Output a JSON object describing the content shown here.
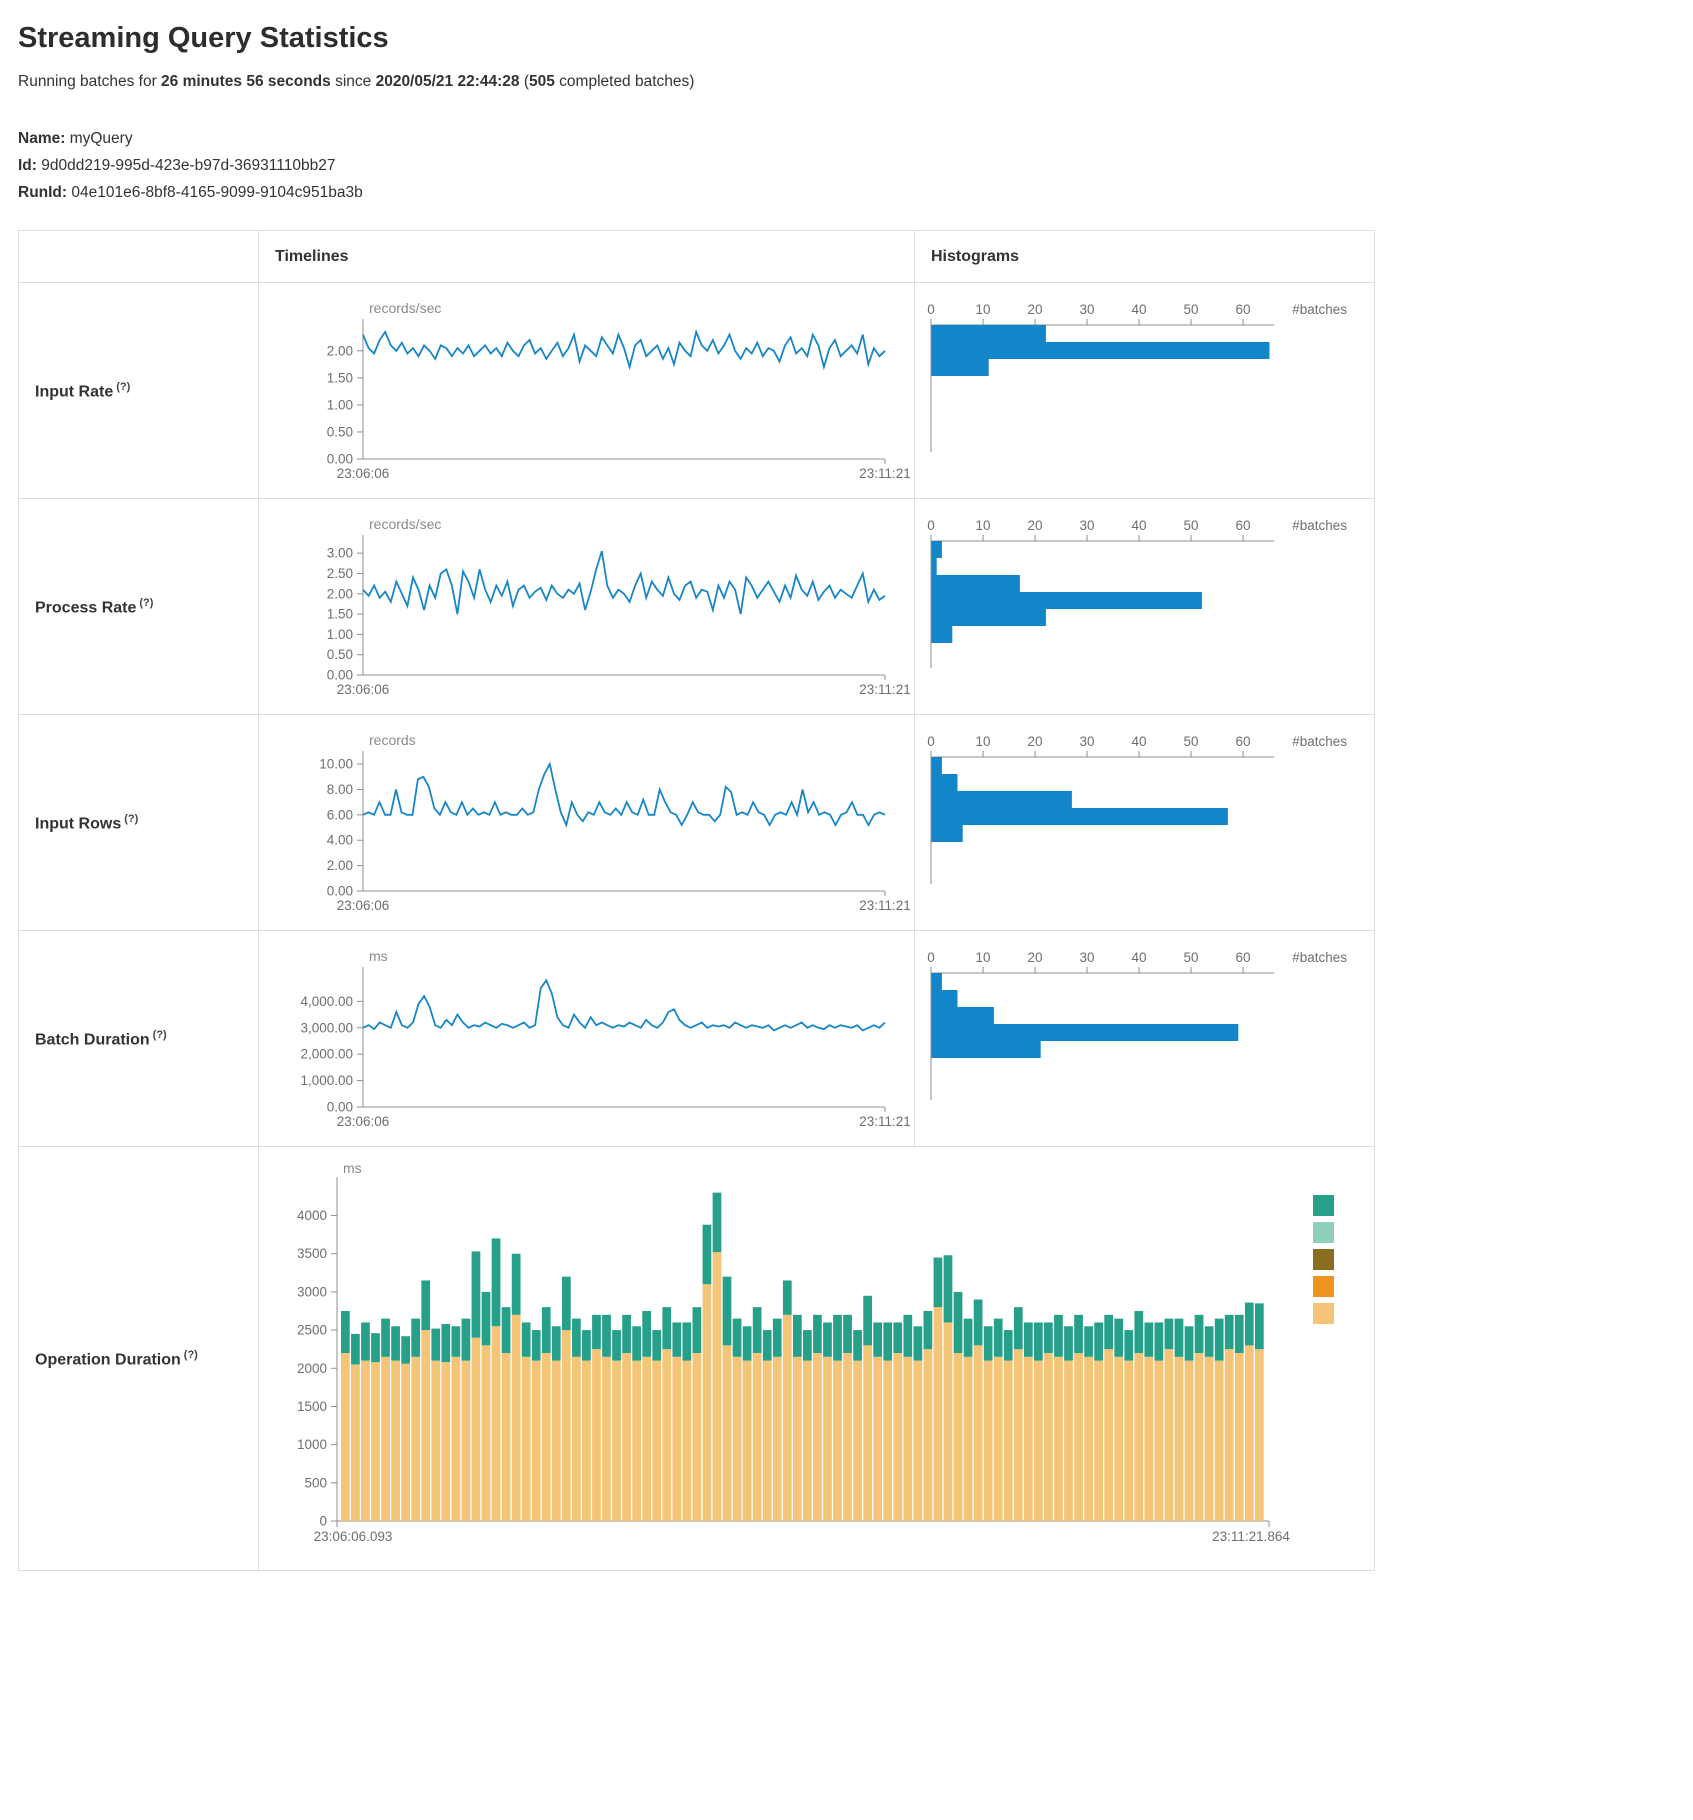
{
  "page": {
    "title": "Streaming Query Statistics",
    "subtitle": {
      "prefix": "Running batches for ",
      "duration": "26 minutes 56 seconds",
      "mid": " since ",
      "since": "2020/05/21 22:44:28",
      "paren_open": " (",
      "batches": "505",
      "paren_close": " completed batches)"
    },
    "meta": {
      "name_label": "Name:",
      "name": "myQuery",
      "id_label": "Id:",
      "id": "9d0dd219-995d-423e-b97d-36931110bb27",
      "runid_label": "RunId:",
      "runid": "04e101e6-8bf8-4165-9099-9104c951ba3b"
    }
  },
  "table": {
    "headers": {
      "timelines": "Timelines",
      "histograms": "Histograms"
    },
    "rows": [
      {
        "label": "Input Rate",
        "help": "(?)"
      },
      {
        "label": "Process Rate",
        "help": "(?)"
      },
      {
        "label": "Input Rows",
        "help": "(?)"
      },
      {
        "label": "Batch Duration",
        "help": "(?)"
      },
      {
        "label": "Operation Duration",
        "help": "(?)"
      }
    ]
  },
  "theme": {
    "line_blue": "#1786c8",
    "hist_blue": "#1386c9",
    "axis_gray": "#8f8f8f",
    "bar_tan": "#f4c577",
    "bar_green": "#27a08a",
    "legend": [
      "#27a08a",
      "#8fd0bc",
      "#8a6d1f",
      "#ef951f",
      "#f4c577"
    ]
  },
  "chart_data": [
    {
      "id": "input-rate-timeline",
      "type": "line",
      "unit": "records/sec",
      "x_start": "23:06:06",
      "x_end": "23:11:21",
      "ymax": 2.44,
      "yticks": [
        {
          "v": 2.0,
          "l": "2.00"
        },
        {
          "v": 1.5,
          "l": "1.50"
        },
        {
          "v": 1.0,
          "l": "1.00"
        },
        {
          "v": 0.5,
          "l": "0.50"
        },
        {
          "v": 0.0,
          "l": "0.00"
        }
      ],
      "values": [
        2.3,
        2.05,
        1.95,
        2.2,
        2.35,
        2.1,
        2.0,
        2.15,
        1.95,
        2.05,
        1.9,
        2.1,
        2.0,
        1.85,
        2.1,
        2.05,
        1.9,
        2.05,
        1.95,
        2.1,
        1.9,
        2.0,
        2.1,
        1.95,
        2.05,
        1.9,
        2.15,
        2.0,
        1.9,
        2.1,
        2.2,
        1.95,
        2.05,
        1.85,
        2.0,
        2.15,
        1.9,
        2.05,
        2.3,
        1.8,
        2.1,
        2.0,
        1.9,
        2.25,
        2.1,
        1.95,
        2.3,
        2.05,
        1.7,
        2.1,
        2.2,
        1.9,
        2.0,
        2.1,
        1.85,
        2.05,
        1.75,
        2.15,
        2.0,
        1.9,
        2.35,
        2.1,
        2.0,
        2.2,
        1.95,
        2.1,
        2.3,
        2.0,
        1.85,
        2.05,
        1.95,
        2.15,
        1.9,
        2.05,
        2.0,
        1.8,
        2.1,
        2.25,
        1.95,
        2.05,
        1.9,
        2.3,
        2.1,
        1.7,
        2.05,
        2.2,
        1.9,
        2.0,
        2.1,
        1.95,
        2.3,
        1.75,
        2.05,
        1.9,
        2.0
      ]
    },
    {
      "id": "input-rate-histogram",
      "type": "hbar",
      "right_label": "#batches",
      "xticks": [
        0,
        10,
        20,
        30,
        40,
        50,
        60
      ],
      "xmax": 66,
      "values": [
        22,
        65,
        11
      ]
    },
    {
      "id": "process-rate-timeline",
      "type": "line",
      "unit": "records/sec",
      "x_start": "23:06:06",
      "x_end": "23:11:21",
      "ymax": 3.25,
      "yticks": [
        {
          "v": 3.0,
          "l": "3.00"
        },
        {
          "v": 2.5,
          "l": "2.50"
        },
        {
          "v": 2.0,
          "l": "2.00"
        },
        {
          "v": 1.5,
          "l": "1.50"
        },
        {
          "v": 1.0,
          "l": "1.00"
        },
        {
          "v": 0.5,
          "l": "0.50"
        },
        {
          "v": 0.0,
          "l": "0.00"
        }
      ],
      "values": [
        2.1,
        1.95,
        2.2,
        1.9,
        2.05,
        1.8,
        2.3,
        2.0,
        1.7,
        2.4,
        2.1,
        1.6,
        2.2,
        1.9,
        2.5,
        2.6,
        2.2,
        1.5,
        2.55,
        2.3,
        1.9,
        2.6,
        2.1,
        1.8,
        2.2,
        1.95,
        2.3,
        1.7,
        2.1,
        2.2,
        1.9,
        2.05,
        2.15,
        1.85,
        2.2,
        2.0,
        1.9,
        2.1,
        2.0,
        2.25,
        1.6,
        2.05,
        2.6,
        3.05,
        2.2,
        1.9,
        2.1,
        2.0,
        1.8,
        2.2,
        2.5,
        1.9,
        2.3,
        2.1,
        1.95,
        2.4,
        2.0,
        1.85,
        2.2,
        2.3,
        1.9,
        2.1,
        2.05,
        1.6,
        2.2,
        1.9,
        2.3,
        2.1,
        1.5,
        2.4,
        2.2,
        1.9,
        2.1,
        2.3,
        2.05,
        1.8,
        2.2,
        1.9,
        2.45,
        2.1,
        1.95,
        2.3,
        1.85,
        2.05,
        2.2,
        1.9,
        2.1,
        2.0,
        1.9,
        2.2,
        2.5,
        1.8,
        2.1,
        1.85,
        1.95
      ]
    },
    {
      "id": "process-rate-histogram",
      "type": "hbar",
      "right_label": "#batches",
      "xticks": [
        0,
        10,
        20,
        30,
        40,
        50,
        60
      ],
      "xmax": 66,
      "values": [
        2,
        1,
        17,
        52,
        22,
        4
      ]
    },
    {
      "id": "input-rows-timeline",
      "type": "line",
      "unit": "records",
      "x_start": "23:06:06",
      "x_end": "23:11:21",
      "ymax": 10.4,
      "yticks": [
        {
          "v": 10,
          "l": "10.00"
        },
        {
          "v": 8,
          "l": "8.00"
        },
        {
          "v": 6,
          "l": "6.00"
        },
        {
          "v": 4,
          "l": "4.00"
        },
        {
          "v": 2,
          "l": "2.00"
        },
        {
          "v": 0,
          "l": "0.00"
        }
      ],
      "values": [
        6,
        6.2,
        6,
        7,
        6,
        6,
        8,
        6.2,
        6,
        6,
        8.8,
        9,
        8.2,
        6.5,
        6,
        7,
        6.2,
        6,
        7,
        6,
        6.5,
        6,
        6.2,
        6,
        7,
        6,
        6.2,
        6,
        6,
        6.5,
        6,
        6.2,
        8,
        9.2,
        10,
        8,
        6.2,
        5.2,
        7,
        6,
        5.5,
        6.2,
        6,
        7,
        6.2,
        6,
        6.5,
        6,
        7,
        6.2,
        6,
        7.2,
        6,
        6,
        8,
        7,
        6.2,
        6,
        5.2,
        6,
        7,
        6.2,
        6,
        6,
        5.5,
        6,
        8.2,
        7.8,
        6,
        6.2,
        6,
        7,
        6.2,
        6,
        5.2,
        6,
        6.2,
        6,
        7,
        6,
        8,
        6.2,
        7,
        6,
        6.2,
        6,
        5.2,
        6,
        6.2,
        7,
        6,
        6,
        5.2,
        6,
        6.2,
        6
      ]
    },
    {
      "id": "input-rows-histogram",
      "type": "hbar",
      "right_label": "#batches",
      "xticks": [
        0,
        10,
        20,
        30,
        40,
        50,
        60
      ],
      "xmax": 66,
      "values": [
        2,
        5,
        27,
        57,
        6
      ]
    },
    {
      "id": "batch-duration-timeline",
      "type": "line",
      "unit": "ms",
      "x_start": "23:06:06",
      "x_end": "23:11:21",
      "ymax": 5000,
      "yticks": [
        {
          "v": 4000,
          "l": "4,000.00"
        },
        {
          "v": 3000,
          "l": "3,000.00"
        },
        {
          "v": 2000,
          "l": "2,000.00"
        },
        {
          "v": 1000,
          "l": "1,000.00"
        },
        {
          "v": 0,
          "l": "0.00"
        }
      ],
      "values": [
        3000,
        3100,
        2950,
        3200,
        3100,
        3000,
        3600,
        3100,
        3000,
        3200,
        3900,
        4200,
        3800,
        3100,
        3000,
        3300,
        3100,
        3500,
        3200,
        3000,
        3100,
        3050,
        3200,
        3100,
        3000,
        3150,
        3100,
        3000,
        3100,
        3200,
        3000,
        3100,
        4500,
        4800,
        4300,
        3400,
        3100,
        3000,
        3500,
        3200,
        3000,
        3400,
        3100,
        3200,
        3100,
        3000,
        3100,
        3050,
        3200,
        3100,
        3000,
        3300,
        3100,
        3000,
        3200,
        3600,
        3700,
        3300,
        3100,
        3000,
        3100,
        3200,
        3000,
        3100,
        3050,
        3100,
        3000,
        3200,
        3100,
        3000,
        3100,
        3050,
        3000,
        3100,
        2900,
        3000,
        3100,
        3000,
        3100,
        3200,
        3000,
        3100,
        3000,
        2950,
        3100,
        3000,
        3100,
        3050,
        3000,
        3100,
        2900,
        3000,
        3100,
        3000,
        3200
      ]
    },
    {
      "id": "batch-duration-histogram",
      "type": "hbar",
      "right_label": "#batches",
      "xticks": [
        0,
        10,
        20,
        30,
        40,
        50,
        60
      ],
      "xmax": 66,
      "values": [
        2,
        5,
        12,
        59,
        21
      ]
    },
    {
      "id": "operation-duration",
      "type": "stacked-bar",
      "unit": "ms",
      "x_start": "23:06:06.093",
      "x_end": "23:11:21.864",
      "ymax": 4400,
      "yticks": [
        4000,
        3500,
        3000,
        2500,
        2000,
        1500,
        1000,
        500,
        0
      ],
      "bars": [
        [
          2200,
          550
        ],
        [
          2050,
          400
        ],
        [
          2100,
          500
        ],
        [
          2080,
          380
        ],
        [
          2150,
          500
        ],
        [
          2100,
          450
        ],
        [
          2060,
          360
        ],
        [
          2150,
          500
        ],
        [
          2500,
          650
        ],
        [
          2100,
          420
        ],
        [
          2080,
          500
        ],
        [
          2150,
          400
        ],
        [
          2100,
          550
        ],
        [
          2400,
          1130
        ],
        [
          2300,
          700
        ],
        [
          2550,
          1150
        ],
        [
          2200,
          600
        ],
        [
          2700,
          800
        ],
        [
          2150,
          450
        ],
        [
          2100,
          400
        ],
        [
          2200,
          600
        ],
        [
          2100,
          450
        ],
        [
          2500,
          700
        ],
        [
          2150,
          500
        ],
        [
          2100,
          400
        ],
        [
          2250,
          450
        ],
        [
          2150,
          550
        ],
        [
          2100,
          400
        ],
        [
          2200,
          500
        ],
        [
          2100,
          450
        ],
        [
          2150,
          600
        ],
        [
          2100,
          400
        ],
        [
          2250,
          550
        ],
        [
          2150,
          450
        ],
        [
          2100,
          500
        ],
        [
          2200,
          600
        ],
        [
          3100,
          780
        ],
        [
          3520,
          780
        ],
        [
          2300,
          900
        ],
        [
          2150,
          500
        ],
        [
          2100,
          450
        ],
        [
          2200,
          600
        ],
        [
          2100,
          400
        ],
        [
          2150,
          500
        ],
        [
          2700,
          450
        ],
        [
          2150,
          550
        ],
        [
          2100,
          400
        ],
        [
          2200,
          500
        ],
        [
          2150,
          450
        ],
        [
          2100,
          600
        ],
        [
          2200,
          500
        ],
        [
          2100,
          400
        ],
        [
          2300,
          650
        ],
        [
          2150,
          450
        ],
        [
          2100,
          500
        ],
        [
          2200,
          400
        ],
        [
          2150,
          550
        ],
        [
          2100,
          450
        ],
        [
          2250,
          500
        ],
        [
          2800,
          650
        ],
        [
          2600,
          880
        ],
        [
          2200,
          800
        ],
        [
          2150,
          500
        ],
        [
          2300,
          600
        ],
        [
          2100,
          450
        ],
        [
          2150,
          500
        ],
        [
          2100,
          400
        ],
        [
          2250,
          550
        ],
        [
          2150,
          450
        ],
        [
          2100,
          500
        ],
        [
          2200,
          400
        ],
        [
          2150,
          550
        ],
        [
          2100,
          450
        ],
        [
          2200,
          500
        ],
        [
          2150,
          400
        ],
        [
          2100,
          500
        ],
        [
          2250,
          450
        ],
        [
          2150,
          500
        ],
        [
          2100,
          400
        ],
        [
          2200,
          550
        ],
        [
          2150,
          450
        ],
        [
          2100,
          500
        ],
        [
          2250,
          400
        ],
        [
          2150,
          500
        ],
        [
          2100,
          450
        ],
        [
          2200,
          500
        ],
        [
          2150,
          400
        ],
        [
          2100,
          550
        ],
        [
          2250,
          450
        ],
        [
          2200,
          500
        ],
        [
          2300,
          560
        ],
        [
          2250,
          600
        ]
      ]
    }
  ]
}
